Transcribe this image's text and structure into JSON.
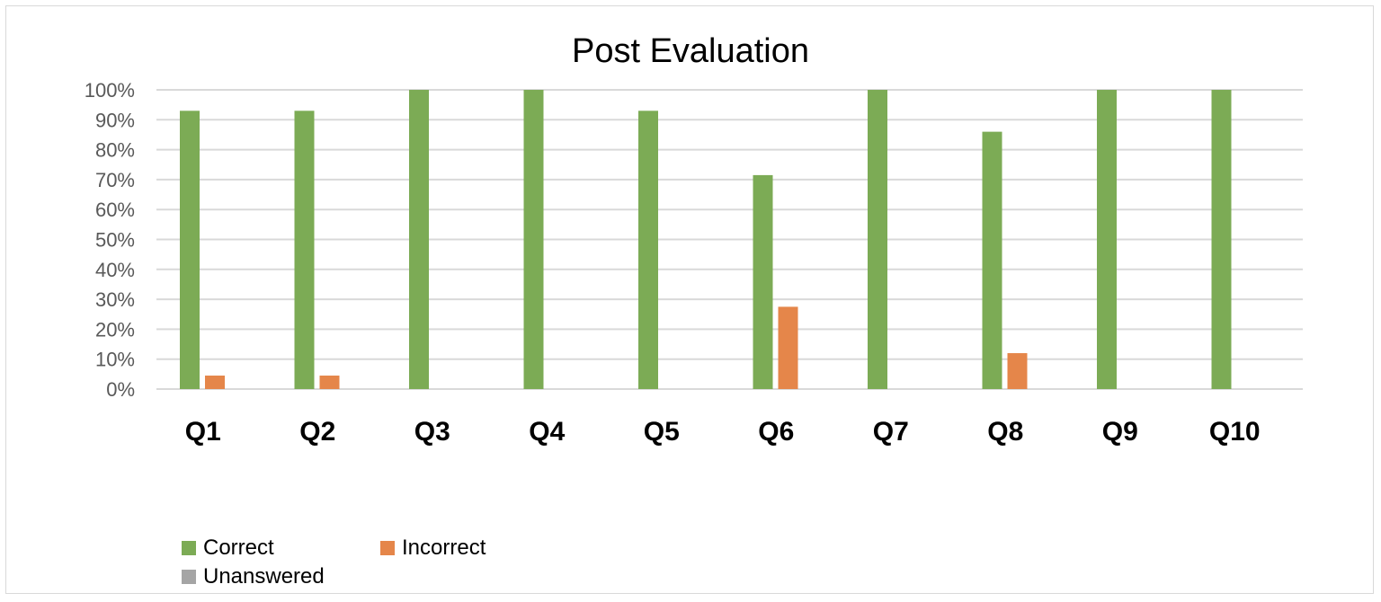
{
  "chart_data": {
    "type": "bar",
    "title": "Post Evaluation",
    "categories": [
      "Q1",
      "Q2",
      "Q3",
      "Q4",
      "Q5",
      "Q6",
      "Q7",
      "Q8",
      "Q9",
      "Q10"
    ],
    "series": [
      {
        "name": "Correct",
        "color": "#7cab55",
        "values": [
          93,
          93,
          100,
          100,
          93,
          71.5,
          100,
          86,
          100,
          100
        ]
      },
      {
        "name": "Incorrect",
        "color": "#e5864a",
        "values": [
          4.5,
          4.5,
          0,
          0,
          0,
          27.5,
          0,
          12,
          0,
          0
        ]
      },
      {
        "name": "Unanswered",
        "color": "#a5a5a5",
        "values": [
          0,
          0,
          0,
          0,
          0,
          0,
          0,
          0,
          0,
          0
        ]
      }
    ],
    "y_ticks": [
      "0%",
      "10%",
      "20%",
      "30%",
      "40%",
      "50%",
      "60%",
      "70%",
      "80%",
      "90%",
      "100%"
    ],
    "ylim": [
      0,
      100
    ],
    "grid": true,
    "legend_position": "bottom-left"
  }
}
